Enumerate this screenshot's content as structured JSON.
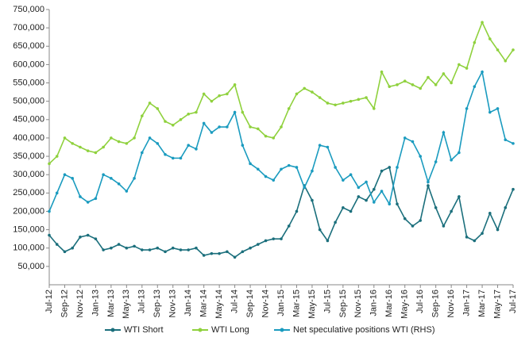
{
  "chart_data": {
    "type": "line",
    "categories": [
      "Jul-12",
      null,
      "Sep-12",
      null,
      "Nov-12",
      null,
      "Jan-13",
      null,
      "Mar-13",
      null,
      "May-13",
      null,
      "Jul-13",
      null,
      "Sep-13",
      null,
      "Nov-13",
      null,
      "Jan-14",
      null,
      "Mar-14",
      null,
      "May-14",
      null,
      "Jul-14",
      null,
      "Sep-14",
      null,
      "Nov-14",
      null,
      "Jan-15",
      null,
      "Mar-15",
      null,
      "May-15",
      null,
      "Jul-15",
      null,
      "Sep-15",
      null,
      "Nov-15",
      null,
      "Jan-16",
      null,
      "Mar-16",
      null,
      "May-16",
      null,
      "Jul-16",
      null,
      "Sep-16",
      null,
      "Nov-16",
      null,
      "Jan-17",
      null,
      "Mar-17",
      null,
      "May-17",
      null,
      "Jul-17"
    ],
    "series": [
      {
        "name": "WTI Short",
        "color": "#1b6f7c",
        "values": [
          135000,
          110000,
          90000,
          100000,
          130000,
          135000,
          125000,
          95000,
          100000,
          110000,
          100000,
          105000,
          95000,
          95000,
          100000,
          90000,
          100000,
          95000,
          95000,
          100000,
          80000,
          85000,
          85000,
          90000,
          75000,
          90000,
          100000,
          110000,
          120000,
          125000,
          125000,
          160000,
          200000,
          270000,
          230000,
          150000,
          120000,
          170000,
          210000,
          200000,
          240000,
          230000,
          260000,
          310000,
          320000,
          220000,
          180000,
          160000,
          175000,
          270000,
          210000,
          160000,
          200000,
          240000,
          130000,
          120000,
          140000,
          195000,
          150000,
          210000,
          260000
        ]
      },
      {
        "name": "WTI Long",
        "color": "#8fd13d",
        "values": [
          330000,
          350000,
          400000,
          385000,
          375000,
          365000,
          360000,
          375000,
          400000,
          390000,
          385000,
          400000,
          460000,
          495000,
          480000,
          445000,
          435000,
          450000,
          465000,
          470000,
          520000,
          500000,
          515000,
          520000,
          545000,
          470000,
          430000,
          425000,
          405000,
          400000,
          430000,
          480000,
          520000,
          535000,
          525000,
          510000,
          495000,
          490000,
          495000,
          500000,
          505000,
          510000,
          480000,
          580000,
          540000,
          545000,
          555000,
          545000,
          535000,
          565000,
          545000,
          575000,
          550000,
          600000,
          590000,
          660000,
          715000,
          670000,
          640000,
          610000,
          640000
        ]
      },
      {
        "name": "Net speculative positions WTI (RHS)",
        "color": "#1a9bbf",
        "values": [
          200000,
          250000,
          300000,
          290000,
          240000,
          225000,
          235000,
          300000,
          290000,
          275000,
          255000,
          290000,
          360000,
          400000,
          385000,
          355000,
          345000,
          345000,
          380000,
          370000,
          440000,
          415000,
          430000,
          430000,
          470000,
          380000,
          330000,
          315000,
          295000,
          285000,
          315000,
          325000,
          320000,
          265000,
          310000,
          380000,
          375000,
          320000,
          285000,
          300000,
          265000,
          280000,
          225000,
          255000,
          220000,
          320000,
          400000,
          390000,
          350000,
          280000,
          335000,
          415000,
          340000,
          360000,
          480000,
          540000,
          580000,
          470000,
          480000,
          395000,
          385000
        ]
      }
    ],
    "ylim": [
      0,
      750000
    ],
    "yticks": [
      {
        "value": 50000,
        "label": "50,000"
      },
      {
        "value": 100000,
        "label": "100,000"
      },
      {
        "value": 150000,
        "label": "150,000"
      },
      {
        "value": 200000,
        "label": "200,000"
      },
      {
        "value": 250000,
        "label": "250,000"
      },
      {
        "value": 300000,
        "label": "300,000"
      },
      {
        "value": 350000,
        "label": "350,000"
      },
      {
        "value": 400000,
        "label": "400,000"
      },
      {
        "value": 450000,
        "label": "450,000"
      },
      {
        "value": 500000,
        "label": "500,000"
      },
      {
        "value": 550000,
        "label": "550,000"
      },
      {
        "value": 600000,
        "label": "600,000"
      },
      {
        "value": 650000,
        "label": "650,000"
      },
      {
        "value": 700000,
        "label": "700,000"
      },
      {
        "value": 750000,
        "label": "750,000"
      }
    ]
  }
}
